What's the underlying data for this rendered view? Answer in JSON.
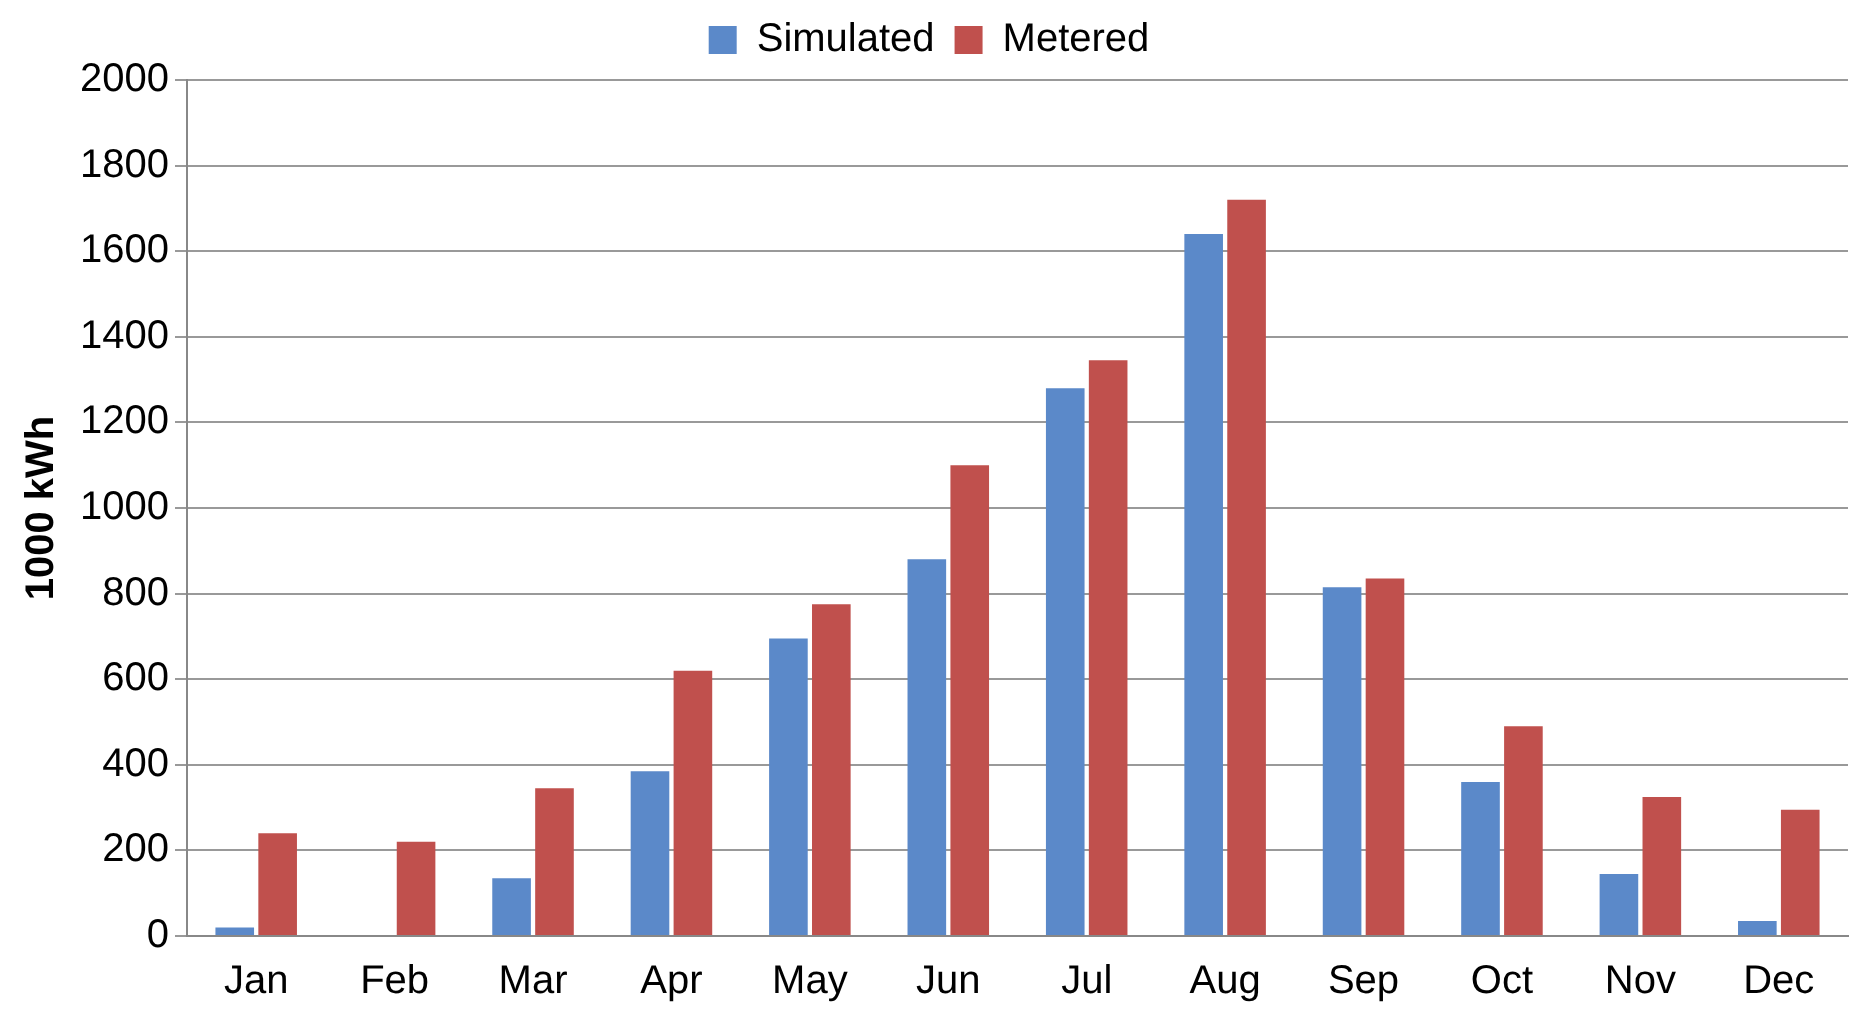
{
  "chart_data": {
    "type": "bar",
    "ylabel": "1000 kWh",
    "categories": [
      "Jan",
      "Feb",
      "Mar",
      "Apr",
      "May",
      "Jun",
      "Jul",
      "Aug",
      "Sep",
      "Oct",
      "Nov",
      "Dec"
    ],
    "series": [
      {
        "name": "Simulated",
        "color": "#5b89c9",
        "values": [
          20,
          0,
          135,
          385,
          695,
          880,
          1280,
          1640,
          815,
          360,
          145,
          35
        ]
      },
      {
        "name": "Metered",
        "color": "#c0504d",
        "values": [
          240,
          220,
          345,
          620,
          775,
          1100,
          1345,
          1720,
          835,
          490,
          325,
          295
        ]
      }
    ],
    "ylim": [
      0,
      2000
    ],
    "yticks": [
      0,
      200,
      400,
      600,
      800,
      1000,
      1200,
      1400,
      1600,
      1800,
      2000
    ],
    "grid": "y",
    "legend": "top"
  }
}
